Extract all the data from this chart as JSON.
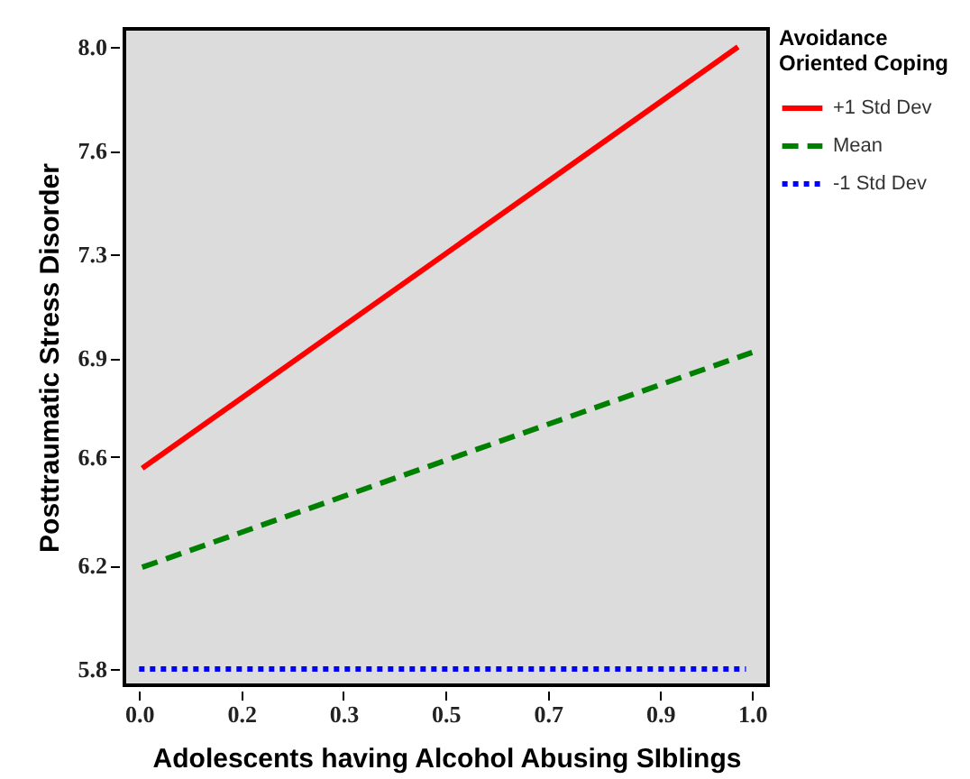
{
  "chart_data": {
    "type": "line",
    "xlabel": "Adolescents having Alcohol Abusing SIblings",
    "ylabel": "Posttraumatic Stress Disorder",
    "legend_title": "Avoidance Oriented Coping",
    "legend": "top right",
    "grid": false,
    "xlim": [
      -0.024,
      1.026
    ],
    "ylim": [
      5.743,
      8.064
    ],
    "xticks": [
      {
        "value": 0,
        "label": "0.0"
      },
      {
        "value": 0.1667,
        "label": "0.2"
      },
      {
        "value": 0.3333,
        "label": "0.3"
      },
      0.5,
      {
        "value": 0.6667,
        "label": "0.7"
      },
      {
        "value": 0.85,
        "label": "0.9"
      },
      {
        "value": 1,
        "label": "1.0"
      }
    ],
    "yticks": [
      5.8,
      {
        "value": 6.1667,
        "label": "6.2"
      },
      {
        "value": 6.55,
        "label": "6.6"
      },
      6.9,
      {
        "value": 7.2667,
        "label": "7.3"
      },
      {
        "value": 7.6333,
        "label": "7.6"
      },
      {
        "value": 8,
        "label": "8.0"
      }
    ],
    "series": [
      {
        "name": "+1 Std Dev",
        "color": "#ff0000",
        "line_style": "solid",
        "x": [
          0.005,
          0.977
        ],
        "values": [
          6.51,
          8.0
        ]
      },
      {
        "name": "Mean",
        "color": "#008000",
        "line_style": "dashed",
        "x": [
          0.005,
          1.0
        ],
        "values": [
          6.16,
          6.92
        ]
      },
      {
        "name": "-1 Std Dev",
        "color": "#0000ff",
        "line_style": "dotted",
        "x": [
          0.0,
          0.99
        ],
        "values": [
          5.8,
          5.8
        ]
      }
    ]
  }
}
